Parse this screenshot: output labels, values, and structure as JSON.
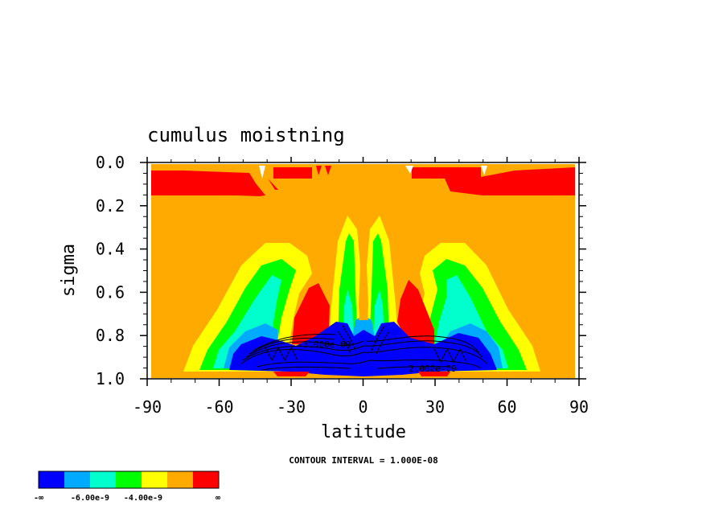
{
  "chart_data": {
    "type": "heatmap",
    "title": "cumulus moistning",
    "xlabel": "latitude",
    "ylabel": "sigma",
    "xlim": [
      -90,
      90
    ],
    "ylim": [
      0.0,
      1.0
    ],
    "y_inverted": true,
    "x_ticks": [
      "-90",
      "-60",
      "-30",
      "0",
      "30",
      "60",
      "90"
    ],
    "x_tick_values": [
      -90,
      -60,
      -30,
      0,
      30,
      60,
      90
    ],
    "y_ticks": [
      "0.0",
      "0.2",
      "0.4",
      "0.6",
      "0.8",
      "1.0"
    ],
    "y_tick_values": [
      0.0,
      0.2,
      0.4,
      0.6,
      0.8,
      1.0
    ],
    "contour_interval_text": "CONTOUR INTERVAL = 1.000E-08",
    "contour_labels": [
      "-3.000e-09",
      "2.000e-09"
    ],
    "colorbar": {
      "colors": [
        "#0000ff",
        "#00aaff",
        "#00ffcc",
        "#00ff00",
        "#ffff00",
        "#ffaa00",
        "#ff0000"
      ],
      "labels": [
        "-∞",
        "-6.00e-9",
        "-4.00e-9",
        "∞"
      ]
    }
  }
}
